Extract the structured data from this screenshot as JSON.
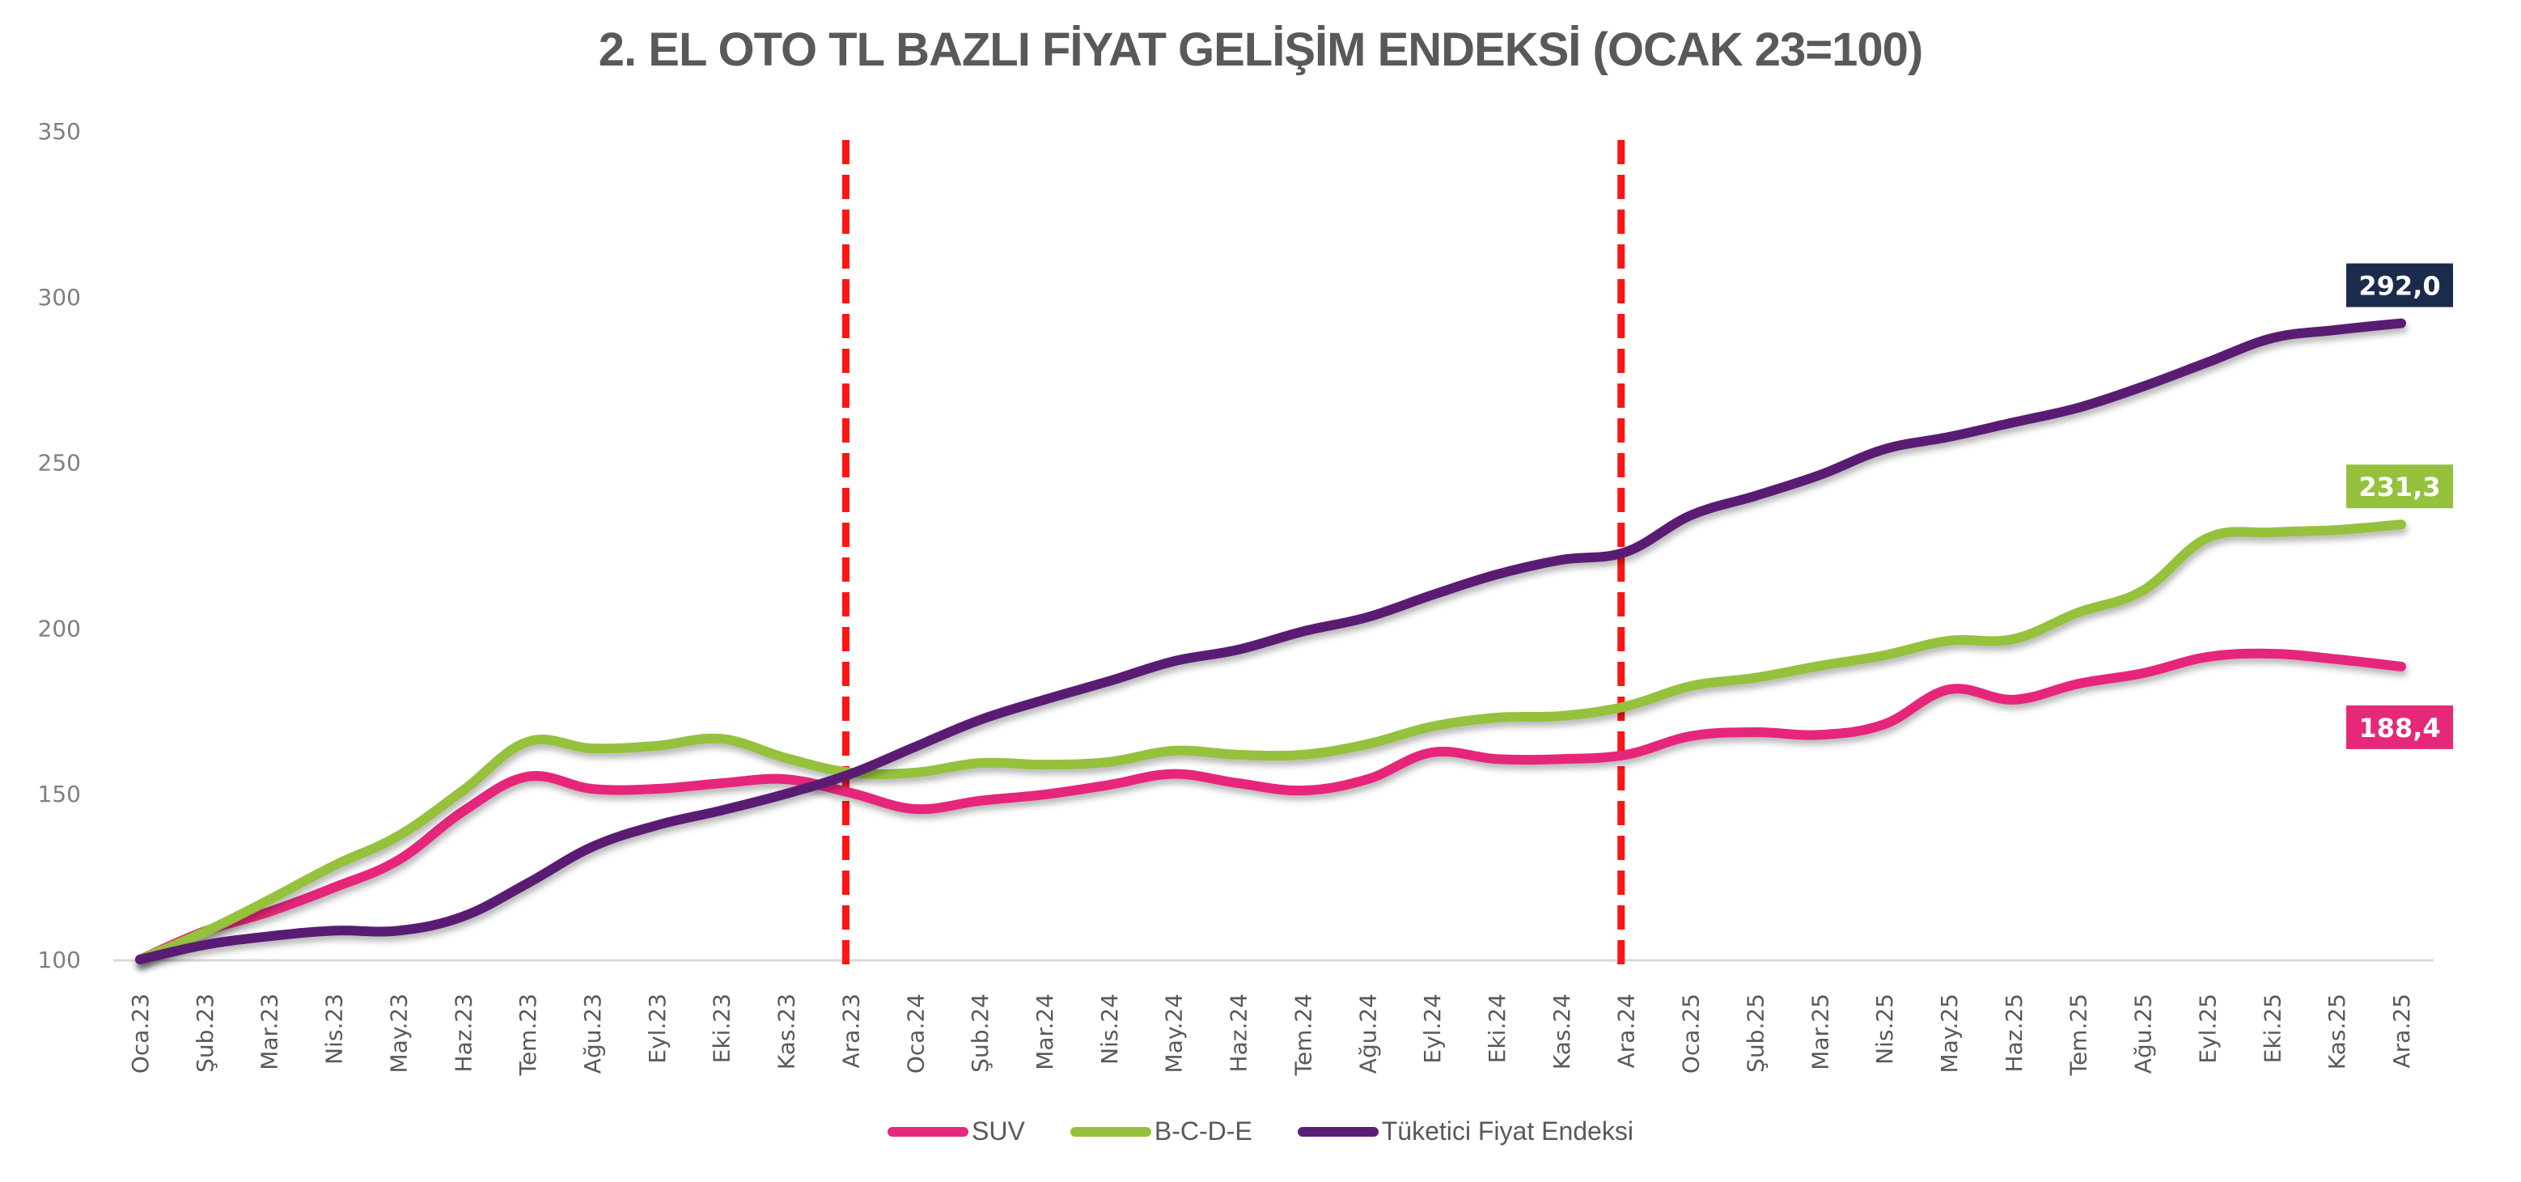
{
  "title": "2. EL OTO TL BAZLI FİYAT GELİŞİM ENDEKSİ (OCAK 23=100)",
  "chart_data": {
    "type": "line",
    "title": "2. EL OTO TL BAZLI FİYAT GELİŞİM ENDEKSİ (OCAK 23=100)",
    "xlabel": "",
    "ylabel": "",
    "ylim": [
      100,
      350
    ],
    "yticks": [
      100,
      150,
      200,
      250,
      300,
      350
    ],
    "grid": false,
    "legend_position": "bottom",
    "categories": [
      "Oca.23",
      "Şub.23",
      "Mar.23",
      "Nis.23",
      "May.23",
      "Haz.23",
      "Tem.23",
      "Ağu.23",
      "Eyl.23",
      "Eki.23",
      "Kas.23",
      "Ara.23",
      "Oca.24",
      "Şub.24",
      "Mar.24",
      "Nis.24",
      "May.24",
      "Haz.24",
      "Tem.24",
      "Ağu.24",
      "Eyl.24",
      "Eki.24",
      "Kas.24",
      "Ara.24",
      "Oca.25",
      "Şub.25",
      "Mar.25",
      "Nis.25",
      "May.25",
      "Haz.25",
      "Tem.25",
      "Ağu.25",
      "Eyl.25",
      "Eki.25",
      "Kas.25",
      "Ara.25"
    ],
    "series": [
      {
        "name": "SUV",
        "color": "#e6287a",
        "values": [
          100.0,
          108.5,
          114.4,
          121.7,
          130.0,
          144.7,
          155.2,
          151.5,
          151.5,
          153.2,
          154.4,
          150.3,
          145.4,
          147.9,
          149.8,
          152.7,
          156.0,
          153.2,
          151.0,
          154.4,
          162.5,
          160.5,
          160.5,
          161.8,
          167.4,
          168.6,
          167.8,
          171.0,
          181.5,
          178.4,
          183.2,
          186.4,
          191.3,
          192.3,
          190.6,
          188.4
        ],
        "end_label": "188,4"
      },
      {
        "name": "B-C-D-E",
        "color": "#95c13d",
        "values": [
          100.0,
          108.3,
          118.0,
          128.3,
          137.3,
          151.0,
          165.7,
          163.7,
          164.5,
          166.6,
          160.8,
          156.4,
          156.4,
          159.3,
          158.8,
          159.6,
          163.0,
          161.8,
          161.8,
          165.0,
          170.3,
          173.0,
          173.5,
          176.4,
          182.5,
          185.0,
          188.6,
          191.8,
          196.2,
          196.7,
          204.7,
          211.3,
          227.2,
          228.9,
          229.6,
          231.3
        ],
        "end_label": "231,3"
      },
      {
        "name": "Tüketici Fiyat Endeksi",
        "color": "#5a1f73",
        "values": [
          100.0,
          104.4,
          107.0,
          108.7,
          108.7,
          113.0,
          123.0,
          134.0,
          140.5,
          145.0,
          150.0,
          156.0,
          164.2,
          172.3,
          178.4,
          184.0,
          190.0,
          193.5,
          199.0,
          203.3,
          210.0,
          216.2,
          220.6,
          223.0,
          234.0,
          239.9,
          246.2,
          254.0,
          257.7,
          262.1,
          266.5,
          272.9,
          280.2,
          287.5,
          290.0,
          292.0
        ],
        "end_label": "292,0"
      }
    ],
    "annotations": [
      {
        "type": "vline",
        "at": "Ara.23",
        "style": "dashed",
        "color": "#ff1414"
      },
      {
        "type": "vline",
        "at": "Ara.24",
        "style": "dashed",
        "color": "#ff1414"
      }
    ],
    "end_label_colors": {
      "SUV": "#e6287a",
      "B-C-D-E": "#95c13d",
      "Tüketici Fiyat Endeksi": "#1b2b4b"
    }
  },
  "legend": {
    "items": [
      {
        "label": "SUV",
        "color": "#e6287a"
      },
      {
        "label": "B-C-D-E",
        "color": "#95c13d"
      },
      {
        "label": "Tüketici Fiyat Endeksi",
        "color": "#5a1f73"
      }
    ]
  }
}
